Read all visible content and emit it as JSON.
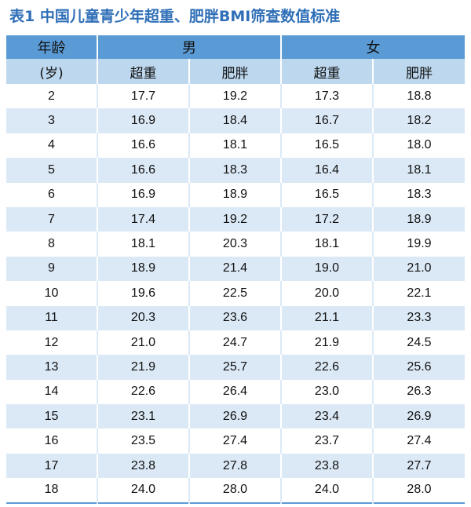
{
  "title": "表1 中国儿童青少年超重、肥胖BMI筛查数值标准",
  "header": {
    "age_label": "年龄",
    "age_unit": "(岁)",
    "male": "男",
    "female": "女",
    "overweight": "超重",
    "obese": "肥胖"
  },
  "rows": [
    {
      "age": "2",
      "m_ow": "17.7",
      "m_ob": "19.2",
      "f_ow": "17.3",
      "f_ob": "18.8"
    },
    {
      "age": "3",
      "m_ow": "16.9",
      "m_ob": "18.4",
      "f_ow": "16.7",
      "f_ob": "18.2"
    },
    {
      "age": "4",
      "m_ow": "16.6",
      "m_ob": "18.1",
      "f_ow": "16.5",
      "f_ob": "18.0"
    },
    {
      "age": "5",
      "m_ow": "16.6",
      "m_ob": "18.3",
      "f_ow": "16.4",
      "f_ob": "18.1"
    },
    {
      "age": "6",
      "m_ow": "16.9",
      "m_ob": "18.9",
      "f_ow": "16.5",
      "f_ob": "18.3"
    },
    {
      "age": "7",
      "m_ow": "17.4",
      "m_ob": "19.2",
      "f_ow": "17.2",
      "f_ob": "18.9"
    },
    {
      "age": "8",
      "m_ow": "18.1",
      "m_ob": "20.3",
      "f_ow": "18.1",
      "f_ob": "19.9"
    },
    {
      "age": "9",
      "m_ow": "18.9",
      "m_ob": "21.4",
      "f_ow": "19.0",
      "f_ob": "21.0"
    },
    {
      "age": "10",
      "m_ow": "19.6",
      "m_ob": "22.5",
      "f_ow": "20.0",
      "f_ob": "22.1"
    },
    {
      "age": "11",
      "m_ow": "20.3",
      "m_ob": "23.6",
      "f_ow": "21.1",
      "f_ob": "23.3"
    },
    {
      "age": "12",
      "m_ow": "21.0",
      "m_ob": "24.7",
      "f_ow": "21.9",
      "f_ob": "24.5"
    },
    {
      "age": "13",
      "m_ow": "21.9",
      "m_ob": "25.7",
      "f_ow": "22.6",
      "f_ob": "25.6"
    },
    {
      "age": "14",
      "m_ow": "22.6",
      "m_ob": "26.4",
      "f_ow": "23.0",
      "f_ob": "26.3"
    },
    {
      "age": "15",
      "m_ow": "23.1",
      "m_ob": "26.9",
      "f_ow": "23.4",
      "f_ob": "26.9"
    },
    {
      "age": "16",
      "m_ow": "23.5",
      "m_ob": "27.4",
      "f_ow": "23.7",
      "f_ob": "27.4"
    },
    {
      "age": "17",
      "m_ow": "23.8",
      "m_ob": "27.8",
      "f_ow": "23.8",
      "f_ob": "27.7"
    },
    {
      "age": "18",
      "m_ow": "24.0",
      "m_ob": "28.0",
      "f_ow": "24.0",
      "f_ob": "28.0"
    }
  ],
  "colors": {
    "title": "#2f6fb7",
    "header_dark": "#5b9bd5",
    "header_light": "#bdd7ee",
    "row_stripe": "#dbe9f6"
  }
}
